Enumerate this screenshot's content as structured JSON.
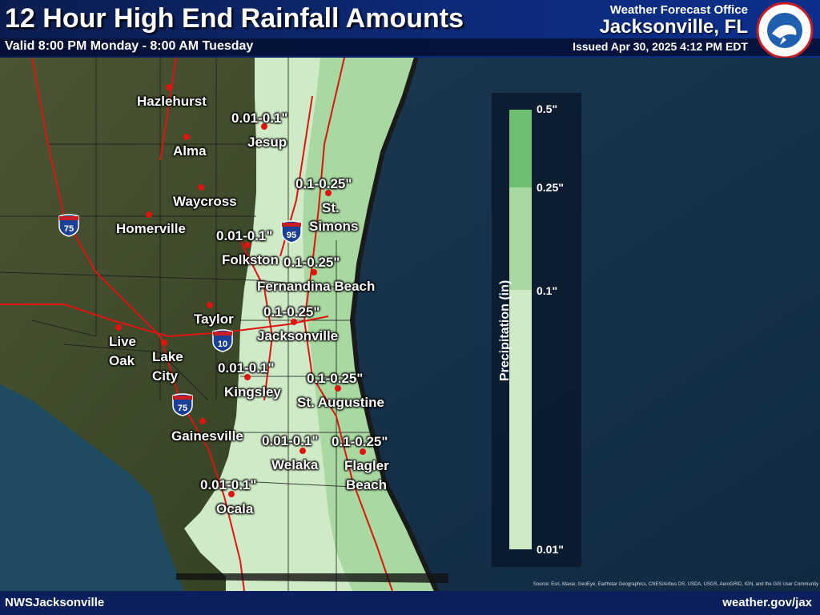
{
  "header": {
    "title": "12 Hour High End Rainfall Amounts",
    "valid": "Valid 8:00 PM Monday - 8:00 AM Tuesday",
    "office": "Weather Forecast Office",
    "city": "Jacksonville, FL",
    "issued": "Issued Apr 30, 2025 4:12 PM EDT",
    "logo_icon": "nws-logo"
  },
  "cities": {
    "hazlehurst": "Hazlehurst",
    "alma": "Alma",
    "waycross": "Waycross",
    "homerville": "Homerville",
    "jesup": "Jesup",
    "st_simons": [
      "St.",
      "Simons"
    ],
    "folkston": "Folkston",
    "fernandina": "Fernandina Beach",
    "taylor": "Taylor",
    "jacksonville": "Jacksonville",
    "live_oak": [
      "Live",
      "Oak"
    ],
    "lake_city": [
      "Lake",
      "City"
    ],
    "kingsley": "Kingsley",
    "st_augustine": "St. Augustine",
    "gainesville": "Gainesville",
    "welaka": "Welaka",
    "flagler": [
      "Flagler",
      "Beach"
    ],
    "ocala": "Ocala"
  },
  "amounts": {
    "jesup": "0.01-0.1\"",
    "st_simons": "0.1-0.25\"",
    "folkston": "0.01-0.1\"",
    "fernandina": "0.1-0.25\"",
    "jacksonville": "0.1-0.25\"",
    "kingsley": "0.01-0.1\"",
    "st_augustine": "0.1-0.25\"",
    "welaka": "0.01-0.1\"",
    "flagler": "0.1-0.25\"",
    "ocala": "0.01-0.1\""
  },
  "highways": {
    "i75": "75",
    "i95": "95",
    "i10": "10"
  },
  "legend": {
    "title": "Precipitation (in)",
    "labels": [
      "0.5\"",
      "0.25\"",
      "0.1\"",
      "0.01\""
    ],
    "colors": [
      "#6fbf73",
      "#a8d9a0",
      "#cfeac6"
    ]
  },
  "footer": {
    "left": "NWSJacksonville",
    "right": "weather.gov/jax",
    "source": "Source: Esri, Maxar, GeoEye, Earthstar Geographics, CNES/Airbus DS, USDA, USGS, AeroGRID, IGN, and the GIS User Community"
  },
  "colors": {
    "header": "#0c2a78",
    "land": "#3c4a2c",
    "ocean": "#14324d",
    "roads": "#e0130f"
  }
}
